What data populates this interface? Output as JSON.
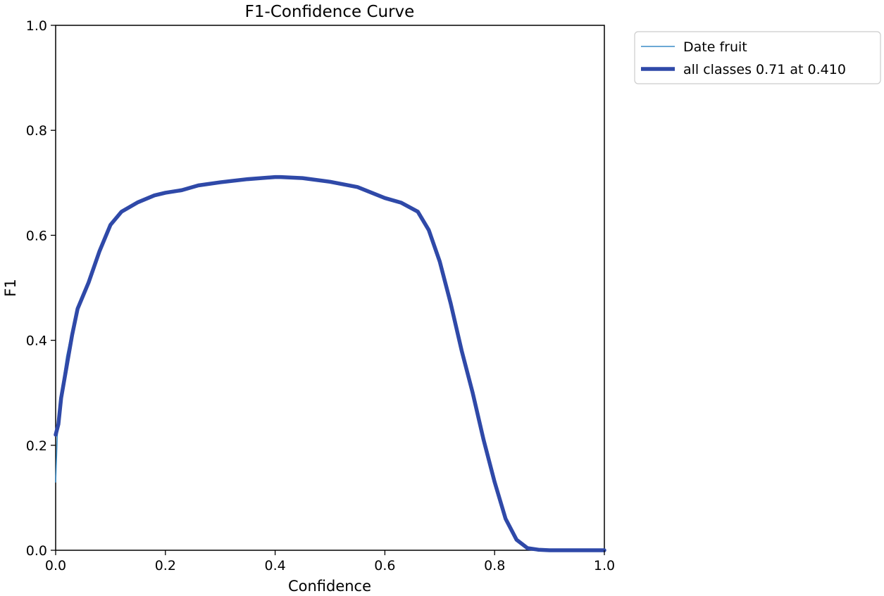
{
  "chart_data": {
    "type": "line",
    "title": "F1-Confidence Curve",
    "xlabel": "Confidence",
    "ylabel": "F1",
    "xlim": [
      0.0,
      1.0
    ],
    "ylim": [
      0.0,
      1.0
    ],
    "xticks": [
      "0.0",
      "0.2",
      "0.4",
      "0.6",
      "0.8",
      "1.0"
    ],
    "yticks": [
      "0.0",
      "0.2",
      "0.4",
      "0.6",
      "0.8",
      "1.0"
    ],
    "grid": false,
    "legend_position": "outside-top-right",
    "series": [
      {
        "name": "Date fruit",
        "color": "#3a8cc7",
        "style": "thin",
        "points": [
          [
            0.0,
            0.13
          ],
          [
            0.003,
            0.22
          ],
          [
            0.01,
            0.3
          ],
          [
            0.02,
            0.37
          ],
          [
            0.03,
            0.42
          ],
          [
            0.04,
            0.46
          ],
          [
            0.06,
            0.51
          ],
          [
            0.08,
            0.57
          ],
          [
            0.1,
            0.62
          ],
          [
            0.12,
            0.645
          ],
          [
            0.15,
            0.663
          ],
          [
            0.18,
            0.676
          ],
          [
            0.2,
            0.681
          ],
          [
            0.23,
            0.686
          ],
          [
            0.26,
            0.695
          ],
          [
            0.3,
            0.701
          ],
          [
            0.35,
            0.707
          ],
          [
            0.4,
            0.711
          ],
          [
            0.41,
            0.711
          ],
          [
            0.45,
            0.709
          ],
          [
            0.5,
            0.702
          ],
          [
            0.55,
            0.692
          ],
          [
            0.6,
            0.671
          ],
          [
            0.63,
            0.662
          ],
          [
            0.66,
            0.645
          ],
          [
            0.68,
            0.61
          ],
          [
            0.7,
            0.55
          ],
          [
            0.72,
            0.47
          ],
          [
            0.74,
            0.38
          ],
          [
            0.76,
            0.3
          ],
          [
            0.78,
            0.21
          ],
          [
            0.8,
            0.13
          ],
          [
            0.82,
            0.06
          ],
          [
            0.84,
            0.02
          ],
          [
            0.86,
            0.004
          ],
          [
            0.88,
            0.001
          ],
          [
            0.9,
            0.0
          ],
          [
            1.0,
            0.0
          ]
        ]
      },
      {
        "name": "all classes 0.71 at 0.410",
        "color": "#2f49a8",
        "style": "thick",
        "points": [
          [
            0.0,
            0.22
          ],
          [
            0.005,
            0.24
          ],
          [
            0.01,
            0.29
          ],
          [
            0.02,
            0.35
          ],
          [
            0.03,
            0.41
          ],
          [
            0.04,
            0.46
          ],
          [
            0.06,
            0.51
          ],
          [
            0.08,
            0.57
          ],
          [
            0.1,
            0.62
          ],
          [
            0.12,
            0.645
          ],
          [
            0.15,
            0.663
          ],
          [
            0.18,
            0.676
          ],
          [
            0.2,
            0.681
          ],
          [
            0.23,
            0.686
          ],
          [
            0.26,
            0.695
          ],
          [
            0.3,
            0.701
          ],
          [
            0.35,
            0.707
          ],
          [
            0.4,
            0.711
          ],
          [
            0.41,
            0.711
          ],
          [
            0.45,
            0.709
          ],
          [
            0.5,
            0.702
          ],
          [
            0.55,
            0.692
          ],
          [
            0.6,
            0.671
          ],
          [
            0.63,
            0.662
          ],
          [
            0.66,
            0.645
          ],
          [
            0.68,
            0.61
          ],
          [
            0.7,
            0.55
          ],
          [
            0.72,
            0.47
          ],
          [
            0.74,
            0.38
          ],
          [
            0.76,
            0.3
          ],
          [
            0.78,
            0.21
          ],
          [
            0.8,
            0.13
          ],
          [
            0.82,
            0.06
          ],
          [
            0.84,
            0.02
          ],
          [
            0.86,
            0.004
          ],
          [
            0.88,
            0.001
          ],
          [
            0.9,
            0.0
          ],
          [
            1.0,
            0.0
          ]
        ]
      }
    ]
  }
}
